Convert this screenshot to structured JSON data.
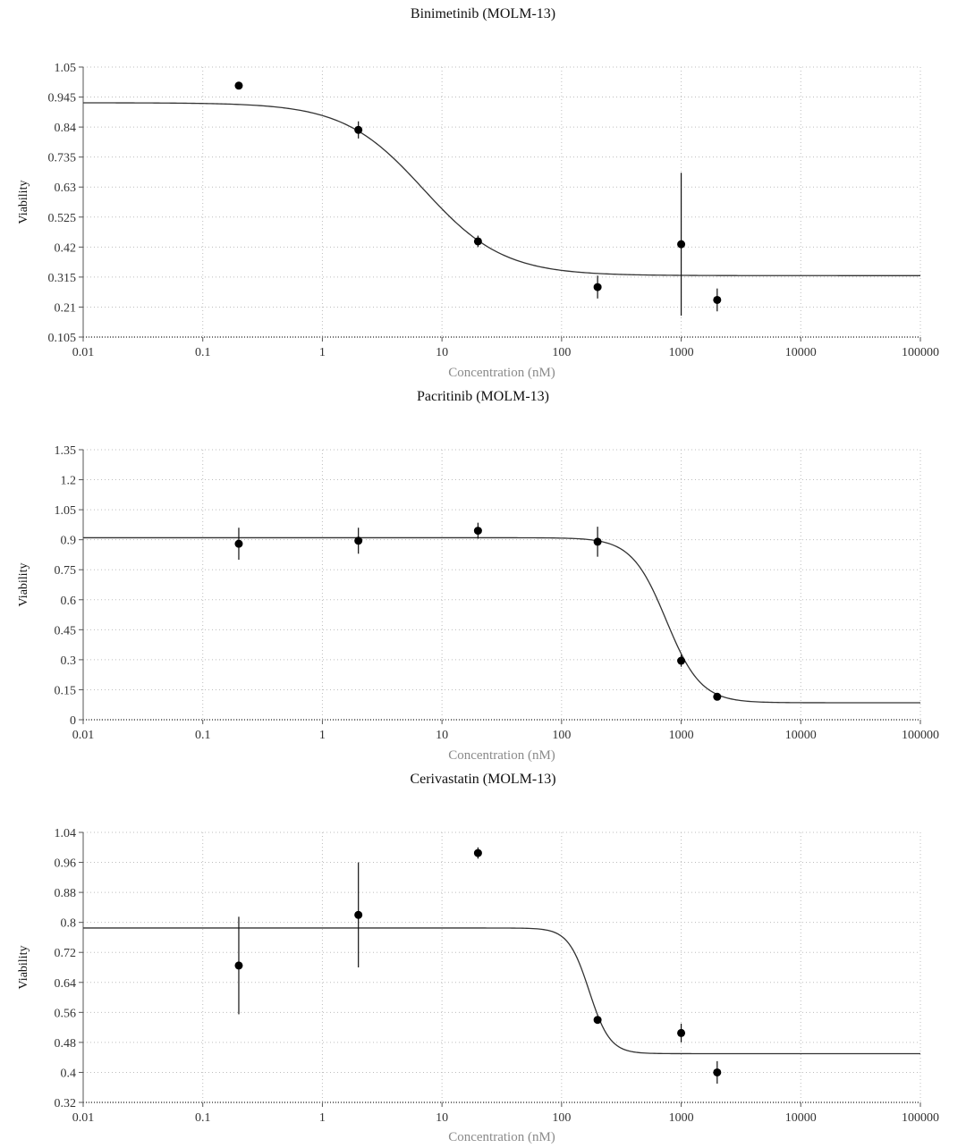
{
  "chart_data": [
    {
      "type": "scatter",
      "title": "Binimetinib (MOLM-13)",
      "xlabel": "Concentration (nM)",
      "ylabel": "Viability",
      "xscale": "log",
      "xlim": [
        0.01,
        100000
      ],
      "xticks": [
        "0.01",
        "0.1",
        "1",
        "10",
        "100",
        "1000",
        "10000",
        "100000"
      ],
      "ylim": [
        0.105,
        1.05
      ],
      "yticks": [
        "0.105",
        "0.21",
        "0.315",
        "0.42",
        "0.525",
        "0.63",
        "0.735",
        "0.84",
        "0.945",
        "1.05"
      ],
      "grid": true,
      "points": [
        {
          "x": 0.2,
          "y": 0.985,
          "err": 0
        },
        {
          "x": 2,
          "y": 0.83,
          "err": 0.03
        },
        {
          "x": 20,
          "y": 0.44,
          "err": 0.02
        },
        {
          "x": 200,
          "y": 0.28,
          "err": 0.04
        },
        {
          "x": 1000,
          "y": 0.43,
          "err": 0.25
        },
        {
          "x": 2000,
          "y": 0.235,
          "err": 0.04
        }
      ],
      "fit": {
        "top": 0.925,
        "bottom": 0.32,
        "ec50": 7,
        "hill": 1.3
      }
    },
    {
      "type": "scatter",
      "title": "Pacritinib (MOLM-13)",
      "xlabel": "Concentration (nM)",
      "ylabel": "Viability",
      "xscale": "log",
      "xlim": [
        0.01,
        100000
      ],
      "xticks": [
        "0.01",
        "0.1",
        "1",
        "10",
        "100",
        "1000",
        "10000",
        "100000"
      ],
      "ylim": [
        0,
        1.35
      ],
      "yticks": [
        "0",
        "0.15",
        "0.3",
        "0.45",
        "0.6",
        "0.75",
        "0.9",
        "1.05",
        "1.2",
        "1.35"
      ],
      "grid": true,
      "points": [
        {
          "x": 0.2,
          "y": 0.88,
          "err": 0.08
        },
        {
          "x": 2,
          "y": 0.895,
          "err": 0.065
        },
        {
          "x": 20,
          "y": 0.945,
          "err": 0.04
        },
        {
          "x": 200,
          "y": 0.89,
          "err": 0.075
        },
        {
          "x": 1000,
          "y": 0.295,
          "err": 0.03
        },
        {
          "x": 2000,
          "y": 0.115,
          "err": 0.01
        }
      ],
      "fit": {
        "top": 0.91,
        "bottom": 0.085,
        "ec50": 750,
        "hill": 3
      }
    },
    {
      "type": "scatter",
      "title": "Cerivastatin (MOLM-13)",
      "xlabel": "Concentration (nM)",
      "ylabel": "Viability",
      "xscale": "log",
      "xlim": [
        0.01,
        100000
      ],
      "xticks": [
        "0.01",
        "0.1",
        "1",
        "10",
        "100",
        "1000",
        "10000",
        "100000"
      ],
      "ylim": [
        0.32,
        1.04
      ],
      "yticks": [
        "0.32",
        "0.4",
        "0.48",
        "0.56",
        "0.64",
        "0.72",
        "0.8",
        "0.88",
        "0.96",
        "1.04"
      ],
      "grid": true,
      "points": [
        {
          "x": 0.2,
          "y": 0.685,
          "err": 0.13
        },
        {
          "x": 2,
          "y": 0.82,
          "err": 0.14
        },
        {
          "x": 20,
          "y": 0.985,
          "err": 0.015
        },
        {
          "x": 200,
          "y": 0.54,
          "err": 0.005
        },
        {
          "x": 1000,
          "y": 0.505,
          "err": 0.025
        },
        {
          "x": 2000,
          "y": 0.4,
          "err": 0.03
        }
      ],
      "fit": {
        "top": 0.785,
        "bottom": 0.45,
        "ec50": 170,
        "hill": 5
      }
    }
  ]
}
